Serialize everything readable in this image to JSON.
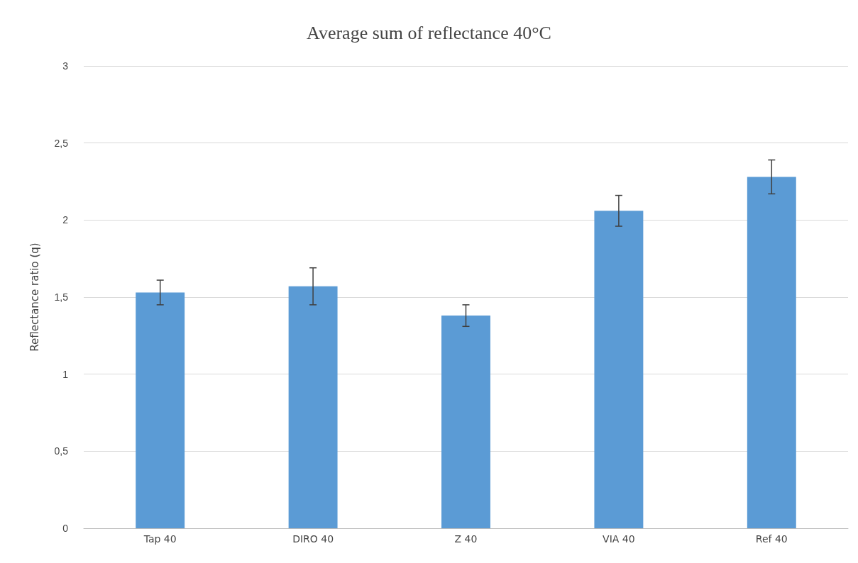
{
  "chart_data": {
    "type": "bar",
    "title": "Average sum of reflectance 40°C",
    "ylabel": "Reflectance ratio (q)",
    "categories": [
      "Tap 40",
      "DIRO 40",
      "Z 40",
      "VIA 40",
      "Ref 40"
    ],
    "values": [
      1.53,
      1.57,
      1.38,
      2.06,
      2.28
    ],
    "errors": [
      0.08,
      0.12,
      0.07,
      0.1,
      0.11
    ],
    "color": "#5b9bd5",
    "ylim": [
      0,
      3
    ],
    "yticks": [
      0,
      {
        "value": 0.5,
        "label": "0,5"
      },
      1,
      {
        "value": 1.5,
        "label": "1,5"
      },
      2,
      {
        "value": 2.5,
        "label": "2,5"
      },
      3
    ],
    "grid": "y"
  }
}
